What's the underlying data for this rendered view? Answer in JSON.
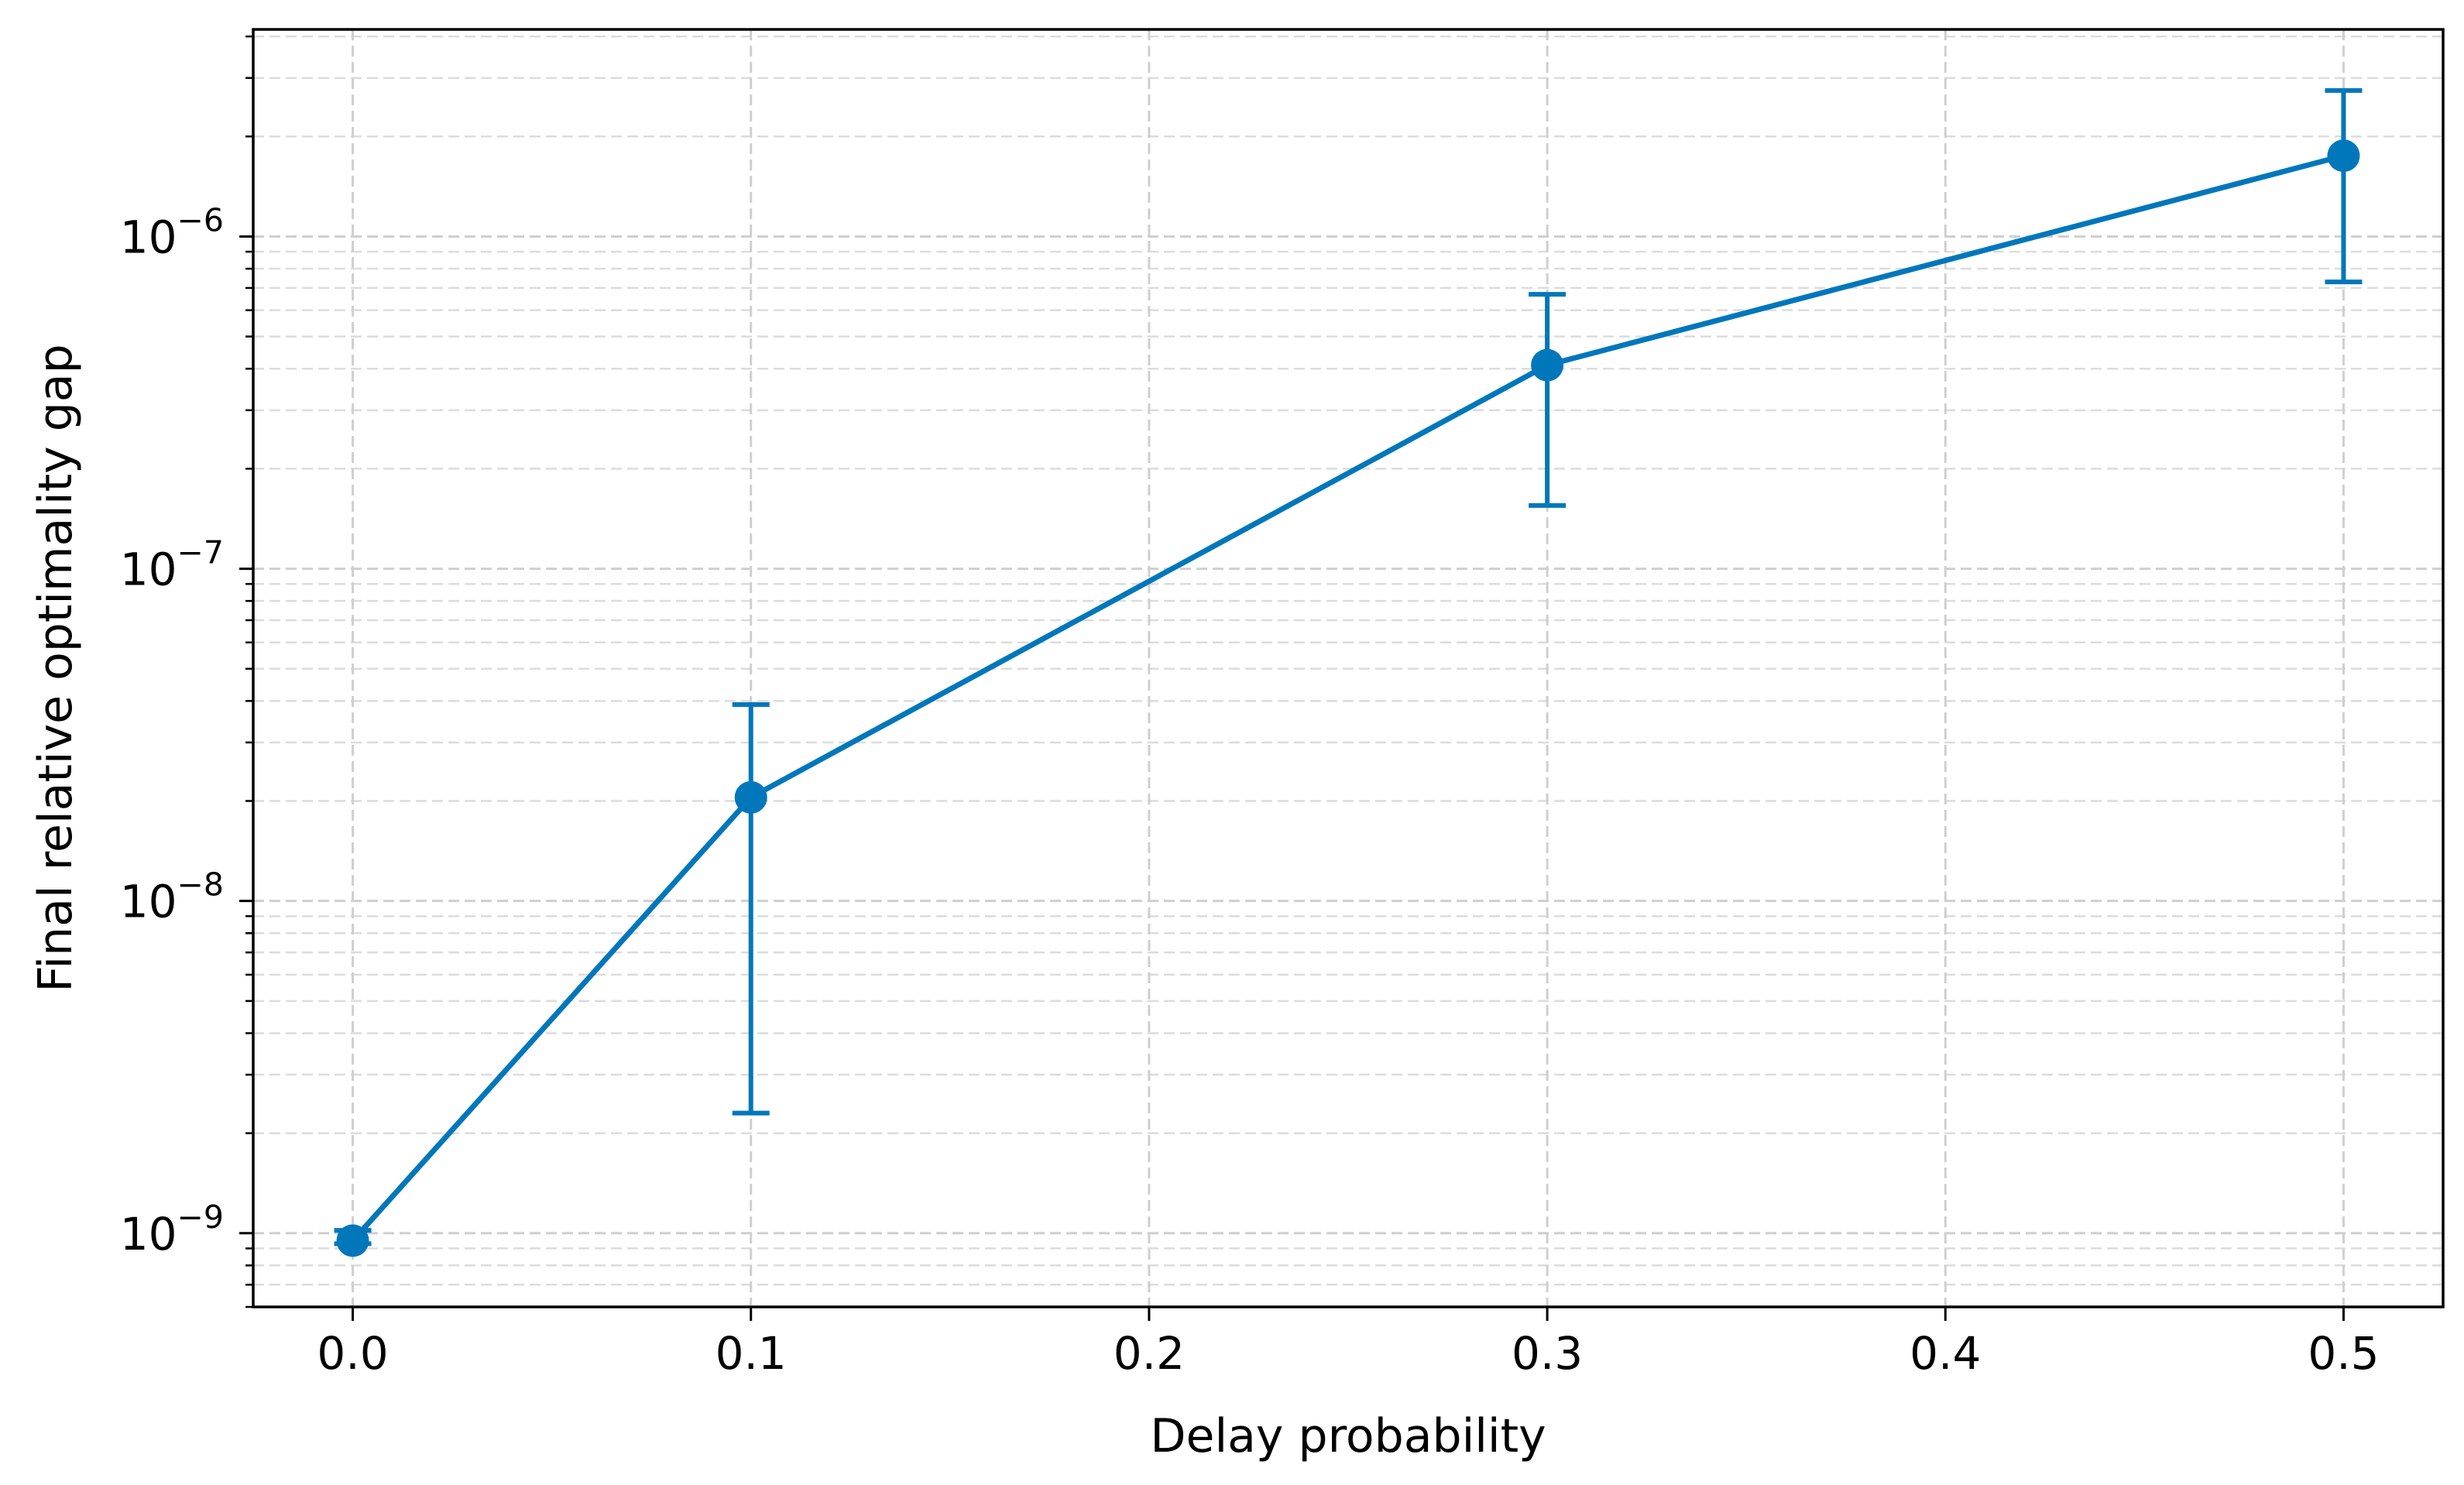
{
  "chart_data": {
    "type": "line",
    "title": "",
    "xlabel": "Delay probability",
    "ylabel": "Final relative optimality gap",
    "yscale": "log",
    "xlim": [
      -0.025,
      0.525
    ],
    "ylim": [
      6e-10,
      4.2e-06
    ],
    "x_ticks": [
      0.0,
      0.1,
      0.2,
      0.3,
      0.4,
      0.5
    ],
    "x_tick_labels": [
      "0.0",
      "0.1",
      "0.2",
      "0.3",
      "0.4",
      "0.5"
    ],
    "y_ticks": [
      1e-09,
      1e-08,
      1e-07,
      1e-06
    ],
    "y_tick_labels": [
      {
        "base": "10",
        "exp": "−9"
      },
      {
        "base": "10",
        "exp": "−8"
      },
      {
        "base": "10",
        "exp": "−7"
      },
      {
        "base": "10",
        "exp": "−6"
      }
    ],
    "grid": true,
    "series": [
      {
        "color": "#0077bb",
        "x": [
          0.0,
          0.1,
          0.3,
          0.5
        ],
        "y": [
          9.5e-10,
          2.05e-08,
          4.1e-07,
          1.75e-06
        ],
        "err_low": [
          9.3e-10,
          2.3e-09,
          1.55e-07,
          7.3e-07
        ],
        "err_high": [
          1.02e-09,
          3.9e-08,
          6.7e-07,
          2.75e-06
        ]
      }
    ]
  }
}
